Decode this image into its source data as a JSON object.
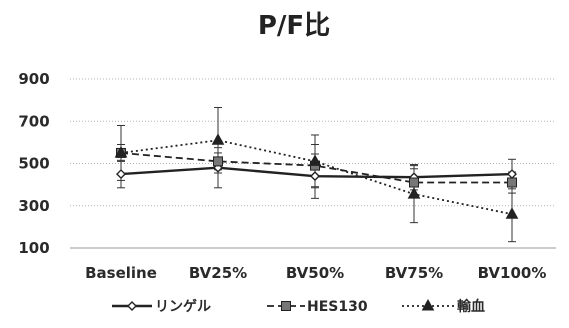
{
  "chart_data": {
    "type": "line",
    "title": "P/F比",
    "xlabel": "",
    "ylabel": "",
    "categories": [
      "Baseline",
      "BV25%",
      "BV50%",
      "BV75%",
      "BV100%"
    ],
    "yticks": [
      100,
      300,
      500,
      700,
      900
    ],
    "ylim": [
      100,
      900
    ],
    "grid": true,
    "legend_position": "bottom",
    "series": [
      {
        "name": "リンゲル",
        "marker": "diamond",
        "line_style": "solid",
        "color": "#222222",
        "values": [
          450,
          480,
          440,
          435,
          450
        ],
        "errors": [
          65,
          95,
          105,
          60,
          70
        ]
      },
      {
        "name": "HES130",
        "marker": "square",
        "line_style": "dashed",
        "color": "#222222",
        "values": [
          550,
          510,
          490,
          410,
          410
        ],
        "errors": [
          130,
          40,
          100,
          65,
          50
        ]
      },
      {
        "name": "輸血",
        "marker": "triangle",
        "line_style": "dotted",
        "color": "#222222",
        "values": [
          550,
          610,
          510,
          355,
          260
        ],
        "errors": [
          40,
          155,
          125,
          135,
          130
        ]
      }
    ]
  }
}
